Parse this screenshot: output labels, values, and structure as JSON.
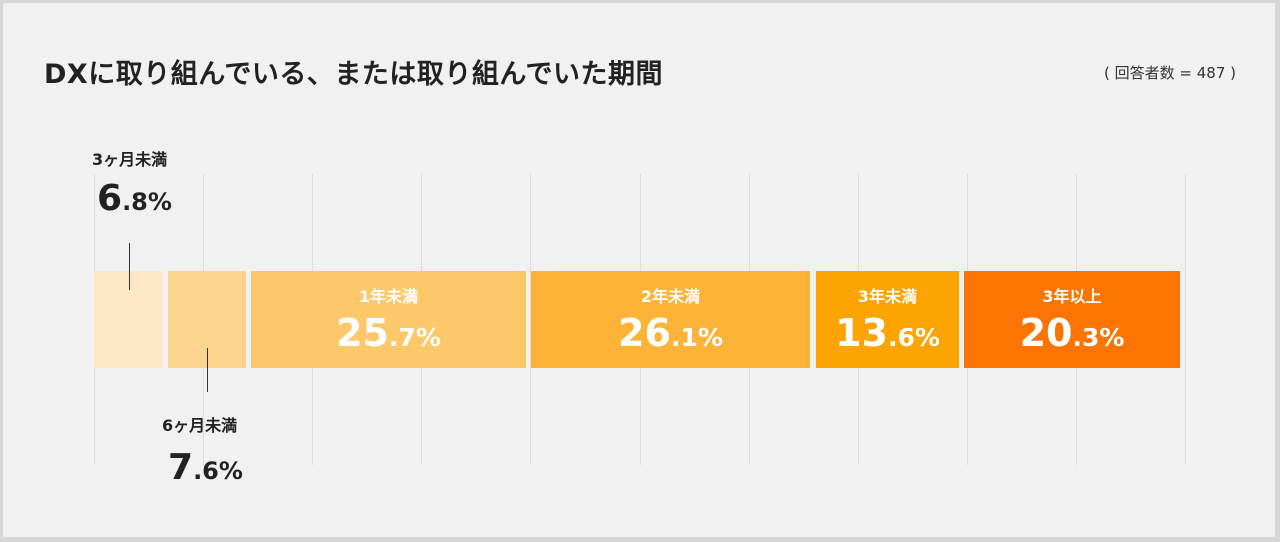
{
  "title": "DXに取り組んでいる、または取り組んでいた期間",
  "respondents_note": "( 回答者数 = 487 )",
  "chart_data": {
    "type": "bar",
    "orientation": "horizontal-stacked",
    "title": "DXに取り組んでいる、または取り組んでいた期間",
    "categories": [
      "3ヶ月未満",
      "6ヶ月未満",
      "1年未満",
      "2年未満",
      "3年未満",
      "3年以上"
    ],
    "values": [
      6.8,
      7.6,
      25.7,
      26.1,
      13.6,
      20.3
    ],
    "unit": "%",
    "value_labels": [
      {
        "int": "6",
        "dec": ".8%"
      },
      {
        "int": "7",
        "dec": ".6%"
      },
      {
        "int": "25",
        "dec": ".7%"
      },
      {
        "int": "26",
        "dec": ".1%"
      },
      {
        "int": "13",
        "dec": ".6%"
      },
      {
        "int": "20",
        "dec": ".3%"
      }
    ],
    "colors": [
      "#fde7c4",
      "#fdd48e",
      "#fdc86a",
      "#fcb337",
      "#fca502",
      "#fc7403"
    ],
    "grid": true,
    "n": 487
  }
}
